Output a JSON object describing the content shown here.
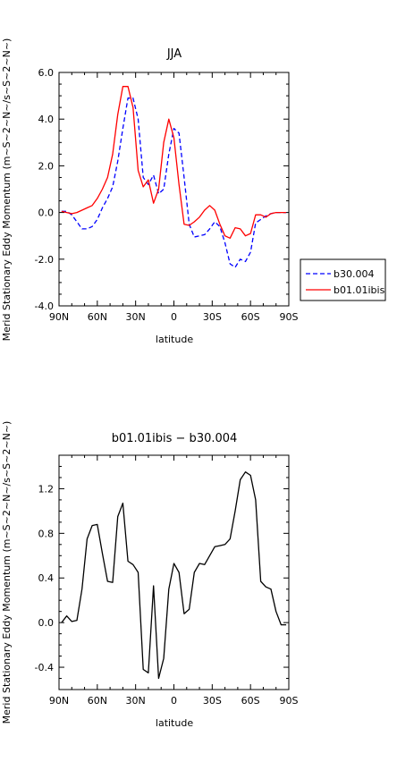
{
  "chart_data": [
    {
      "type": "line",
      "title": "JJA",
      "xlabel": "latitude",
      "ylabel": "Merid Stationary Eddy Momentum (m~S~2~N~/s~S~2~N~)",
      "xlim": [
        90,
        -90
      ],
      "ylim": [
        -4.0,
        6.0
      ],
      "xticks": [
        90,
        60,
        30,
        0,
        -30,
        -60,
        -90
      ],
      "xticklabels": [
        "90N",
        "60N",
        "30N",
        "0",
        "30S",
        "60S",
        "90S"
      ],
      "yticks": [
        -4.0,
        -2.0,
        0.0,
        2.0,
        4.0,
        6.0
      ],
      "yticklabels": [
        "-4.0",
        "-2.0",
        "0.0",
        "2.0",
        "4.0",
        "6.0"
      ],
      "grid": false,
      "legend": "right",
      "series": [
        {
          "name": "b30.004",
          "color": "#0000ff",
          "dash": "dashed",
          "x": [
            88,
            84,
            80,
            76,
            72,
            68,
            64,
            60,
            56,
            52,
            48,
            44,
            40,
            36,
            32,
            28,
            24,
            20,
            16,
            12,
            8,
            4,
            0,
            -4,
            -8,
            -12,
            -16,
            -20,
            -24,
            -28,
            -32,
            -36,
            -40,
            -44,
            -48,
            -52,
            -56,
            -60,
            -64,
            -68,
            -72,
            -76,
            -80,
            -84,
            -88
          ],
          "y": [
            0.05,
            0.05,
            -0.1,
            -0.4,
            -0.7,
            -0.7,
            -0.6,
            -0.3,
            0.2,
            0.6,
            1.1,
            2.2,
            3.6,
            4.9,
            4.9,
            4.0,
            1.5,
            1.2,
            1.6,
            0.8,
            1.0,
            2.5,
            3.6,
            3.4,
            1.5,
            -0.5,
            -1.05,
            -1.0,
            -0.95,
            -0.7,
            -0.4,
            -0.6,
            -1.3,
            -2.2,
            -2.35,
            -2.0,
            -2.1,
            -1.7,
            -0.45,
            -0.3,
            -0.15,
            -0.05,
            0.0,
            0.0,
            0.0
          ]
        },
        {
          "name": "b01.01ibis",
          "color": "#ff0000",
          "dash": "solid",
          "x": [
            88,
            84,
            80,
            76,
            72,
            68,
            64,
            60,
            56,
            52,
            48,
            44,
            40,
            36,
            32,
            28,
            24,
            20,
            16,
            12,
            8,
            4,
            0,
            -4,
            -8,
            -12,
            -16,
            -20,
            -24,
            -28,
            -32,
            -36,
            -40,
            -44,
            -48,
            -52,
            -56,
            -60,
            -64,
            -68,
            -72,
            -76,
            -80,
            -84,
            -88
          ],
          "y": [
            0.05,
            0.0,
            -0.05,
            0.0,
            0.1,
            0.2,
            0.3,
            0.6,
            1.0,
            1.5,
            2.5,
            4.2,
            5.4,
            5.4,
            4.5,
            1.8,
            1.1,
            1.4,
            0.4,
            1.0,
            3.0,
            4.0,
            3.2,
            1.2,
            -0.5,
            -0.55,
            -0.4,
            -0.2,
            0.1,
            0.3,
            0.1,
            -0.5,
            -1.0,
            -1.1,
            -0.65,
            -0.7,
            -1.0,
            -0.9,
            -0.1,
            -0.1,
            -0.2,
            -0.05,
            0.0,
            0.0,
            0.0
          ]
        }
      ]
    },
    {
      "type": "line",
      "title": "b01.01ibis − b30.004",
      "xlabel": "latitude",
      "ylabel": "Merid Stationary Eddy Momentum (m~S~2~N~/s~S~2~N~)",
      "xlim": [
        90,
        -90
      ],
      "ylim": [
        -0.6,
        1.5
      ],
      "xticks": [
        90,
        60,
        30,
        0,
        -30,
        -60,
        -90
      ],
      "xticklabels": [
        "90N",
        "60N",
        "30N",
        "0",
        "30S",
        "60S",
        "90S"
      ],
      "yticks": [
        -0.4,
        0.0,
        0.4,
        0.8,
        1.2
      ],
      "yticklabels": [
        "-0.4",
        "0.0",
        "0.4",
        "0.8",
        "1.2"
      ],
      "grid": false,
      "series": [
        {
          "color": "#000000",
          "dash": "solid",
          "x": [
            88,
            84,
            80,
            76,
            72,
            68,
            64,
            60,
            56,
            52,
            48,
            44,
            40,
            36,
            32,
            28,
            24,
            20,
            16,
            12,
            8,
            4,
            0,
            -4,
            -8,
            -12,
            -16,
            -20,
            -24,
            -28,
            -32,
            -36,
            -40,
            -44,
            -48,
            -52,
            -56,
            -60,
            -64,
            -68,
            -72,
            -76,
            -80,
            -84,
            -88
          ],
          "y": [
            0.0,
            0.06,
            0.01,
            0.02,
            0.3,
            0.75,
            0.87,
            0.88,
            0.62,
            0.37,
            0.36,
            0.95,
            1.07,
            0.55,
            0.52,
            0.45,
            -0.42,
            -0.45,
            0.33,
            -0.5,
            -0.32,
            0.3,
            0.53,
            0.45,
            0.08,
            0.12,
            0.45,
            0.53,
            0.52,
            0.6,
            0.68,
            0.69,
            0.7,
            0.75,
            1.0,
            1.28,
            1.35,
            1.32,
            1.1,
            0.37,
            0.32,
            0.3,
            0.1,
            -0.02,
            -0.02
          ]
        }
      ]
    }
  ]
}
